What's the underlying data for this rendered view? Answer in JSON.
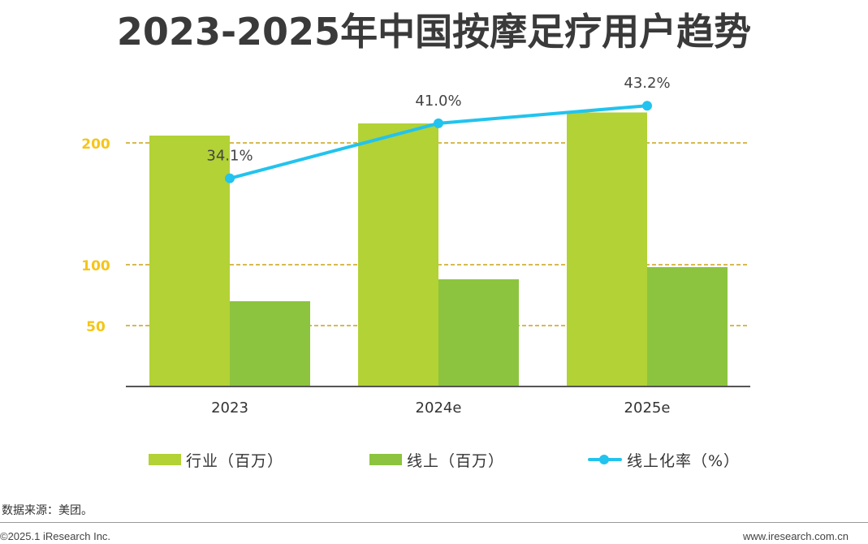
{
  "chart_data": {
    "type": "bar",
    "title": "2023-2025年中国按摩足疗用户趋势",
    "categories": [
      "2023",
      "2024e",
      "2025e"
    ],
    "y_ticks": [
      50,
      100,
      200
    ],
    "ylim": [
      0,
      240
    ],
    "grid": "dashed horizontal at tick values",
    "series": [
      {
        "name": "行业（百万）",
        "type": "bar",
        "color": "#b2d235",
        "values": [
          206,
          216,
          225
        ]
      },
      {
        "name": "线上（百万）",
        "type": "bar",
        "color": "#8cc43f",
        "values": [
          70,
          88,
          98
        ]
      },
      {
        "name": "线上化率（%）",
        "type": "line",
        "color": "#22c3ee",
        "values": [
          34.1,
          41.0,
          43.2
        ],
        "labels": [
          "34.1%",
          "41.0%",
          "43.2%"
        ]
      }
    ],
    "line_scale": [
      0,
      60
    ],
    "legend_position": "bottom",
    "tick_color": "#f5c518",
    "grid_color": "#c8a416"
  },
  "footer": {
    "source": "数据来源：美团。",
    "copyright": "©2025.1 iResearch Inc.",
    "website": "www.iresearch.com.cn"
  }
}
